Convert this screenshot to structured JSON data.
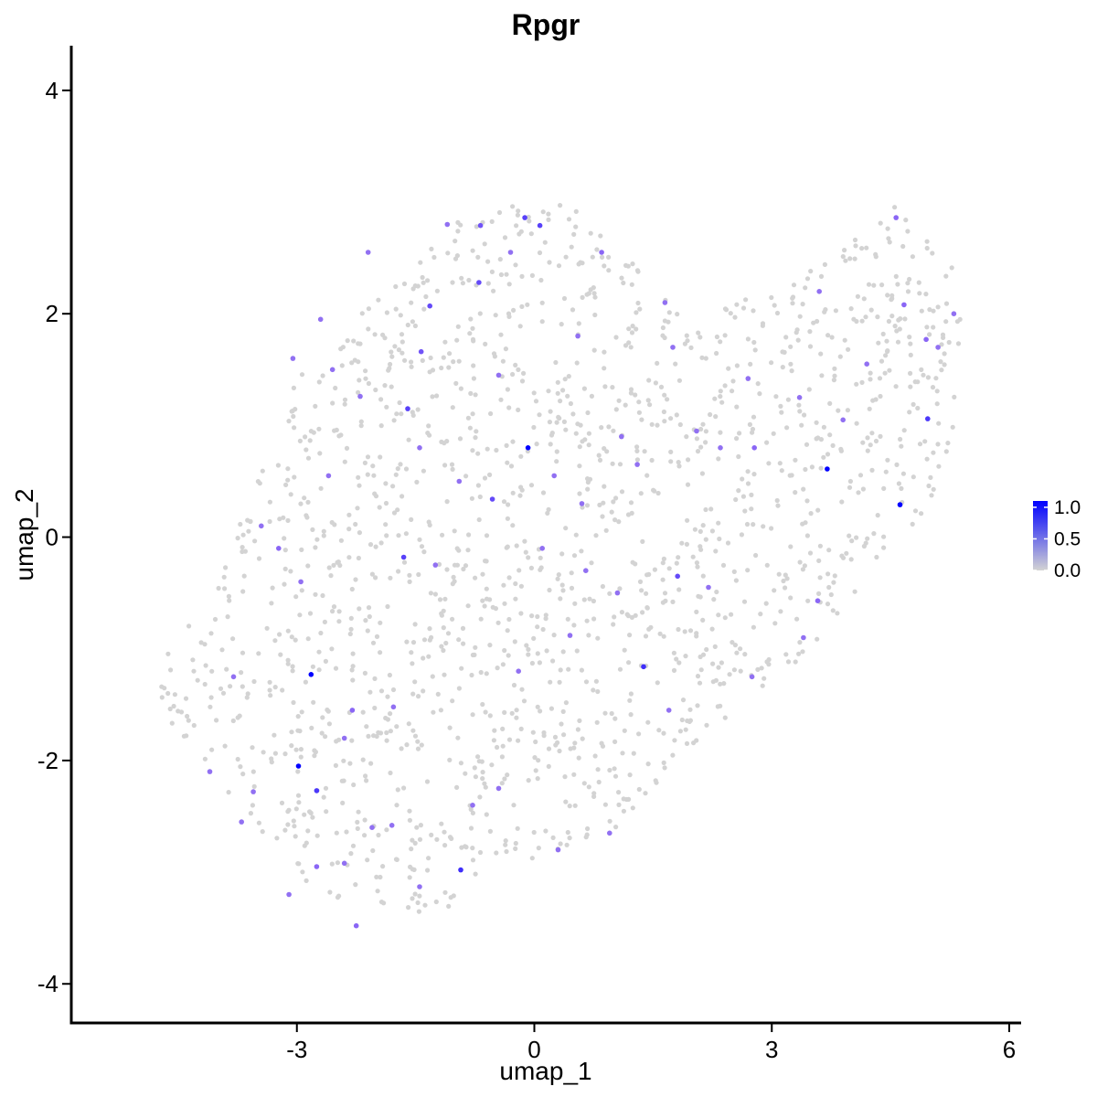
{
  "chart_data": {
    "type": "scatter",
    "title": "Rpgr",
    "xlabel": "umap_1",
    "ylabel": "umap_2",
    "xlim": [
      -5.85,
      6.15
    ],
    "ylim": [
      -4.35,
      4.4
    ],
    "x_ticks": [
      -3,
      0,
      3,
      6
    ],
    "y_ticks": [
      -4,
      -2,
      0,
      2,
      4
    ],
    "x_tick_labels": [
      "-3",
      "0",
      "3",
      "6"
    ],
    "y_tick_labels": [
      "-4",
      "-2",
      "0",
      "2",
      "4"
    ],
    "grid": false,
    "legend": {
      "placement": "right",
      "type": "colorbar",
      "min": 0.0,
      "max": 1.1,
      "tick_values": [
        1.0,
        0.5,
        0.0
      ],
      "tick_labels": [
        "1.0",
        "0.5",
        "0.0"
      ],
      "colors": {
        "low": "#d3d3d3",
        "high": "#0000ff"
      }
    },
    "background_color": "#d3d3d3",
    "points": [
      {
        "x": -0.08,
        "y": 0.8,
        "v": 1.1
      },
      {
        "x": 3.7,
        "y": 0.61,
        "v": 1.1
      },
      {
        "x": 4.62,
        "y": 0.29,
        "v": 1.1
      },
      {
        "x": -2.82,
        "y": -1.23,
        "v": 1.1
      },
      {
        "x": -2.98,
        "y": -2.05,
        "v": 1.1
      },
      {
        "x": -0.93,
        "y": -2.98,
        "v": 0.85
      },
      {
        "x": 1.38,
        "y": -1.16,
        "v": 0.85
      },
      {
        "x": 4.97,
        "y": 1.06,
        "v": 0.8
      },
      {
        "x": -1.6,
        "y": 1.15,
        "v": 0.75
      },
      {
        "x": -1.65,
        "y": -0.18,
        "v": 0.75
      },
      {
        "x": -0.53,
        "y": 0.34,
        "v": 0.7
      },
      {
        "x": -0.7,
        "y": 2.28,
        "v": 0.7
      },
      {
        "x": 0.07,
        "y": 2.79,
        "v": 0.75
      },
      {
        "x": -0.12,
        "y": 2.86,
        "v": 0.75
      },
      {
        "x": 1.81,
        "y": -0.35,
        "v": 0.7
      },
      {
        "x": -2.75,
        "y": -2.27,
        "v": 0.8
      },
      {
        "x": -1.43,
        "y": 1.66,
        "v": 0.65
      },
      {
        "x": -1.32,
        "y": 2.07,
        "v": 0.7
      },
      {
        "x": -0.68,
        "y": 2.79,
        "v": 0.65
      },
      {
        "x": 0.85,
        "y": 2.55,
        "v": 0.55
      },
      {
        "x": 2.78,
        "y": 0.8,
        "v": 0.55
      },
      {
        "x": 3.58,
        "y": -0.57,
        "v": 0.55
      },
      {
        "x": 4.57,
        "y": 2.86,
        "v": 0.55
      },
      {
        "x": 4.67,
        "y": 2.08,
        "v": 0.55
      },
      {
        "x": 4.95,
        "y": 1.77,
        "v": 0.55
      },
      {
        "x": -3.23,
        "y": -0.1,
        "v": 0.55
      },
      {
        "x": -2.75,
        "y": -2.95,
        "v": 0.55
      },
      {
        "x": -2.25,
        "y": -3.48,
        "v": 0.55
      },
      {
        "x": -2.3,
        "y": -1.55,
        "v": 0.55
      },
      {
        "x": -1.78,
        "y": -1.52,
        "v": 0.5
      },
      {
        "x": -3.55,
        "y": -2.28,
        "v": 0.5
      },
      {
        "x": -3.7,
        "y": -2.55,
        "v": 0.5
      },
      {
        "x": -3.05,
        "y": 1.6,
        "v": 0.5
      },
      {
        "x": -2.2,
        "y": 1.26,
        "v": 0.5
      },
      {
        "x": -2.55,
        "y": 1.5,
        "v": 0.5
      },
      {
        "x": -0.45,
        "y": 1.45,
        "v": 0.5
      },
      {
        "x": 0.25,
        "y": 0.55,
        "v": 0.5
      },
      {
        "x": 0.6,
        "y": 0.3,
        "v": 0.5
      },
      {
        "x": 1.1,
        "y": 0.9,
        "v": 0.5
      },
      {
        "x": 1.75,
        "y": 1.7,
        "v": 0.5
      },
      {
        "x": 2.05,
        "y": 0.95,
        "v": 0.5
      },
      {
        "x": 2.35,
        "y": 0.8,
        "v": 0.5
      },
      {
        "x": 2.7,
        "y": 1.42,
        "v": 0.5
      },
      {
        "x": 3.35,
        "y": 1.25,
        "v": 0.5
      },
      {
        "x": 3.9,
        "y": 1.05,
        "v": 0.5
      },
      {
        "x": 4.2,
        "y": 1.55,
        "v": 0.5
      },
      {
        "x": 5.1,
        "y": 1.7,
        "v": 0.5
      },
      {
        "x": 5.3,
        "y": 2.0,
        "v": 0.5
      },
      {
        "x": 3.6,
        "y": 2.2,
        "v": 0.5
      },
      {
        "x": 2.2,
        "y": -0.45,
        "v": 0.5
      },
      {
        "x": 1.05,
        "y": -0.5,
        "v": 0.5
      },
      {
        "x": 0.45,
        "y": -0.88,
        "v": 0.5
      },
      {
        "x": -0.2,
        "y": -1.2,
        "v": 0.5
      },
      {
        "x": -0.45,
        "y": -2.25,
        "v": 0.5
      },
      {
        "x": 0.3,
        "y": -2.8,
        "v": 0.5
      },
      {
        "x": 0.95,
        "y": -2.65,
        "v": 0.5
      },
      {
        "x": 1.7,
        "y": -1.55,
        "v": 0.5
      },
      {
        "x": 2.75,
        "y": -1.25,
        "v": 0.5
      },
      {
        "x": 3.4,
        "y": -0.9,
        "v": 0.5
      },
      {
        "x": -0.78,
        "y": -2.4,
        "v": 0.5
      },
      {
        "x": -1.45,
        "y": -3.13,
        "v": 0.5
      },
      {
        "x": -1.8,
        "y": -2.58,
        "v": 0.5
      },
      {
        "x": -2.05,
        "y": -2.6,
        "v": 0.5
      },
      {
        "x": -2.4,
        "y": -1.8,
        "v": 0.5
      },
      {
        "x": -2.95,
        "y": -0.4,
        "v": 0.5
      },
      {
        "x": -2.6,
        "y": 0.55,
        "v": 0.5
      },
      {
        "x": -3.45,
        "y": 0.1,
        "v": 0.5
      },
      {
        "x": -3.8,
        "y": -1.25,
        "v": 0.5
      },
      {
        "x": -4.1,
        "y": -2.1,
        "v": 0.5
      },
      {
        "x": -3.1,
        "y": -3.2,
        "v": 0.5
      },
      {
        "x": -2.4,
        "y": -2.92,
        "v": 0.5
      },
      {
        "x": -1.25,
        "y": -0.25,
        "v": 0.5
      },
      {
        "x": -0.95,
        "y": 0.5,
        "v": 0.5
      },
      {
        "x": -1.45,
        "y": 0.8,
        "v": 0.5
      },
      {
        "x": 0.1,
        "y": -0.1,
        "v": 0.5
      },
      {
        "x": 0.65,
        "y": -0.3,
        "v": 0.5
      },
      {
        "x": 1.3,
        "y": 0.65,
        "v": 0.5
      },
      {
        "x": -0.3,
        "y": 2.55,
        "v": 0.5
      },
      {
        "x": -1.1,
        "y": 2.8,
        "v": 0.5
      },
      {
        "x": -2.1,
        "y": 2.55,
        "v": 0.5
      },
      {
        "x": -2.7,
        "y": 1.95,
        "v": 0.5
      },
      {
        "x": 0.55,
        "y": 1.8,
        "v": 0.5
      },
      {
        "x": 1.65,
        "y": 2.1,
        "v": 0.5
      }
    ]
  }
}
